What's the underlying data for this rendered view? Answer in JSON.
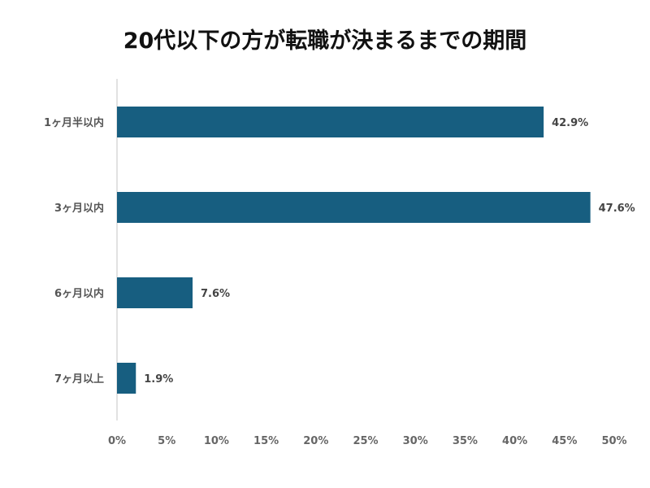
{
  "chart_data": {
    "type": "bar",
    "orientation": "horizontal",
    "title": "20代以下の方が転職が決まるまでの期間",
    "categories": [
      "1ヶ月半以内",
      "3ヶ月以内",
      "6ヶ月以内",
      "7ヶ月以上"
    ],
    "values": [
      42.9,
      47.6,
      7.6,
      1.9
    ],
    "data_labels": [
      "42.9%",
      "47.6%",
      "7.6%",
      "1.9%"
    ],
    "xlim": [
      0,
      50
    ],
    "xticks": [
      "0%",
      "5%",
      "10%",
      "15%",
      "20%",
      "25%",
      "30%",
      "35%",
      "40%",
      "45%",
      "50%"
    ],
    "xlabel": "",
    "ylabel": "",
    "grid": false,
    "bar_color": "#175e80"
  }
}
